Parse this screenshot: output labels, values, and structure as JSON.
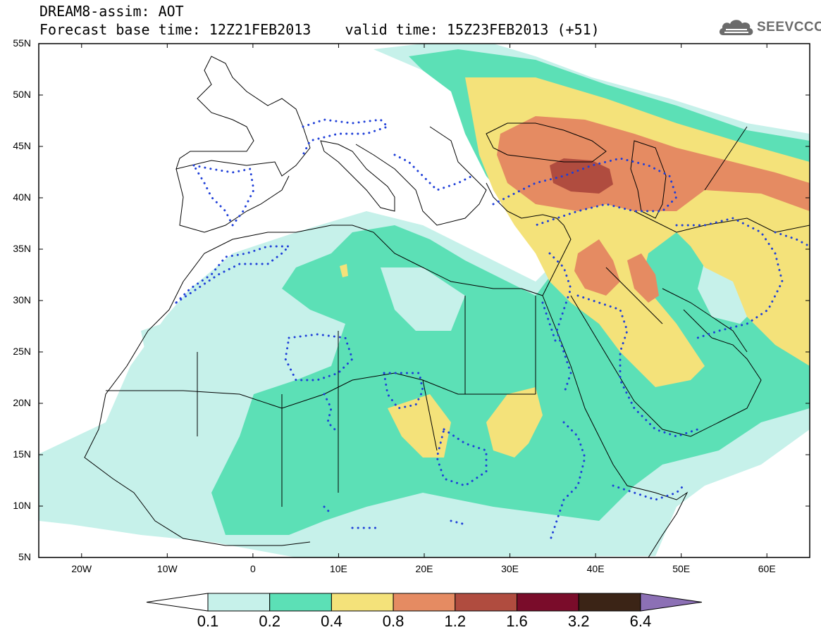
{
  "header": {
    "title_line1": "DREAM8-assim: AOT",
    "title_line2": "Forecast base time: 12Z21FEB2013    valid time: 15Z23FEB2013 (+51)",
    "logo_text": "SEEVCCC"
  },
  "map": {
    "extent": {
      "lon_min": -25,
      "lon_max": 65,
      "lat_min": 5,
      "lat_max": 55
    },
    "lat_ticks": [
      {
        "value": 55,
        "label": "55N"
      },
      {
        "value": 50,
        "label": "50N"
      },
      {
        "value": 45,
        "label": "45N"
      },
      {
        "value": 40,
        "label": "40N"
      },
      {
        "value": 35,
        "label": "35N"
      },
      {
        "value": 30,
        "label": "30N"
      },
      {
        "value": 25,
        "label": "25N"
      },
      {
        "value": 20,
        "label": "20N"
      },
      {
        "value": 15,
        "label": "15N"
      },
      {
        "value": 10,
        "label": "10N"
      },
      {
        "value": 5,
        "label": "5N"
      }
    ],
    "lon_ticks": [
      {
        "value": -20,
        "label": "20W"
      },
      {
        "value": -10,
        "label": "10W"
      },
      {
        "value": 0,
        "label": "0"
      },
      {
        "value": 10,
        "label": "10E"
      },
      {
        "value": 20,
        "label": "20E"
      },
      {
        "value": 30,
        "label": "30E"
      },
      {
        "value": 40,
        "label": "40E"
      },
      {
        "value": 50,
        "label": "50E"
      },
      {
        "value": 60,
        "label": "60E"
      }
    ]
  },
  "colorbar": {
    "levels": [
      "0.1",
      "0.2",
      "0.4",
      "0.8",
      "1.2",
      "1.6",
      "3.2",
      "6.4"
    ],
    "colors": [
      "#c6f1ea",
      "#5ce0b6",
      "#f4e27a",
      "#e58b62",
      "#b04c3f",
      "#7a0c2a",
      "#3b2416",
      "#8c70b5"
    ],
    "under_color": "#ffffff"
  },
  "colors": {
    "aot_0_1": "#c6f1ea",
    "aot_0_2": "#5ce0b6",
    "aot_0_4": "#f4e27a",
    "aot_0_8": "#e58b62",
    "aot_1_2": "#b04c3f",
    "contour_dotted": "#1f3fd8",
    "coastline": "#000000"
  }
}
